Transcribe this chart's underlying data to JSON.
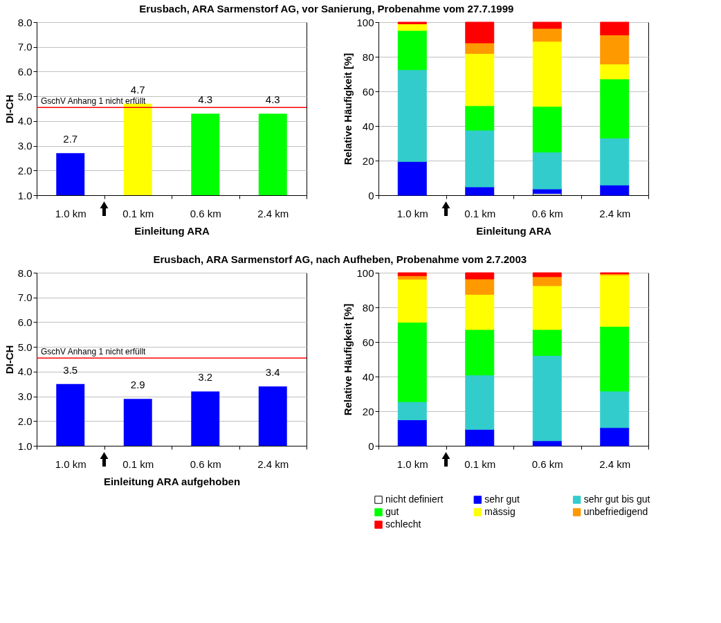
{
  "chart_data": [
    {
      "type": "bar",
      "title": "Erusbach, ARA Sarmenstorf AG, vor Sanierung, Probenahme vom  27.7.1999",
      "xlabel": "Einleitung ARA",
      "ylabel": "DI-CH",
      "categories": [
        "1.0 km",
        "0.1 km",
        "0.6 km",
        "2.4 km"
      ],
      "values": [
        2.7,
        4.7,
        4.3,
        4.3
      ],
      "colors": [
        "#0000ff",
        "#ffff00",
        "#00ff00",
        "#00ff00"
      ],
      "ylim": [
        1,
        8
      ],
      "yticks": [
        {
          "value": 1,
          "label": "1.0"
        },
        {
          "value": 2,
          "label": "2.0"
        },
        {
          "value": 3,
          "label": "3.0"
        },
        {
          "value": 4,
          "label": "4.0"
        },
        {
          "value": 5,
          "label": "5.0"
        },
        {
          "value": 6,
          "label": "6.0"
        },
        {
          "value": 7,
          "label": "7.0"
        },
        {
          "value": 8,
          "label": "8.0"
        }
      ],
      "grid": "y",
      "data_labels": true,
      "legend": false,
      "ref_lines": [
        {
          "axis": "y",
          "value": 4.55,
          "label": "GschV Anhang 1 nicht erfüllt",
          "color": "#ff0000"
        }
      ]
    },
    {
      "type": "bar",
      "stacked": true,
      "xlabel": "Einleitung ARA",
      "ylabel": "Relative Häufigkeit [%]",
      "categories": [
        "1.0 km",
        "0.1 km",
        "0.6 km",
        "2.4 km"
      ],
      "ylim": [
        0,
        100
      ],
      "yticks": [
        0,
        20,
        40,
        60,
        80,
        100
      ],
      "grid": "y",
      "legend": false,
      "series": [
        {
          "color": "#ffffff",
          "values": [
            0,
            0,
            1.0,
            0
          ]
        },
        {
          "color": "#0000ff",
          "values": [
            19.5,
            4.8,
            2.6,
            5.9
          ]
        },
        {
          "color": "#33cccc",
          "values": [
            53.0,
            32.8,
            21.3,
            27.1
          ]
        },
        {
          "color": "#00ff00",
          "values": [
            22.7,
            14.1,
            26.4,
            34.2
          ]
        },
        {
          "color": "#ffff00",
          "values": [
            3.8,
            30.2,
            37.6,
            8.6
          ]
        },
        {
          "color": "#ff9900",
          "values": [
            0,
            6.1,
            7.5,
            16.8
          ]
        },
        {
          "color": "#ff0000",
          "values": [
            1.0,
            12.0,
            3.6,
            7.4
          ]
        }
      ]
    },
    {
      "type": "bar",
      "title": "Erusbach, ARA Sarmenstorf AG, nach Aufheben, Probenahme vom 2.7.2003",
      "xlabel": "Einleitung ARA aufgehoben",
      "ylabel": "DI-CH",
      "categories": [
        "1.0 km",
        "0.1 km",
        "0.6 km",
        "2.4 km"
      ],
      "values": [
        3.5,
        2.9,
        3.2,
        3.4
      ],
      "colors": [
        "#0000ff",
        "#0000ff",
        "#0000ff",
        "#0000ff"
      ],
      "ylim": [
        1,
        8
      ],
      "yticks": [
        {
          "value": 1,
          "label": "1.0"
        },
        {
          "value": 2,
          "label": "2.0"
        },
        {
          "value": 3,
          "label": "3.0"
        },
        {
          "value": 4,
          "label": "4.0"
        },
        {
          "value": 5,
          "label": "5.0"
        },
        {
          "value": 6,
          "label": "6.0"
        },
        {
          "value": 7,
          "label": "7.0"
        },
        {
          "value": 8,
          "label": "8.0"
        }
      ],
      "grid": "y",
      "data_labels": true,
      "legend": false,
      "ref_lines": [
        {
          "axis": "y",
          "value": 4.55,
          "label": "GschV Anhang 1 nicht erfüllt",
          "color": "#ff0000"
        }
      ]
    },
    {
      "type": "bar",
      "stacked": true,
      "ylabel": "Relative Häufigkeit [%]",
      "categories": [
        "1.0 km",
        "0.1 km",
        "0.6 km",
        "2.4 km"
      ],
      "ylim": [
        0,
        100
      ],
      "yticks": [
        0,
        20,
        40,
        60,
        80,
        100
      ],
      "grid": "y",
      "legend": "bottom",
      "series": [
        {
          "name": "nicht definiert",
          "color": "#ffffff",
          "values": [
            0,
            0,
            0,
            0
          ]
        },
        {
          "name": "sehr gut",
          "color": "#0000ff",
          "values": [
            15.0,
            9.5,
            2.9,
            10.5
          ]
        },
        {
          "name": "sehr gut bis gut",
          "color": "#33cccc",
          "values": [
            10.5,
            31.4,
            49.3,
            21.1
          ]
        },
        {
          "name": "gut",
          "color": "#00ff00",
          "values": [
            45.9,
            26.3,
            15.0,
            37.4
          ]
        },
        {
          "name": "mässig",
          "color": "#ffff00",
          "values": [
            24.9,
            20.3,
            25.3,
            29.7
          ]
        },
        {
          "name": "unbefriedigend",
          "color": "#ff9900",
          "values": [
            2.0,
            8.9,
            5.2,
            0.7
          ]
        },
        {
          "name": "schlecht",
          "color": "#ff0000",
          "values": [
            1.7,
            3.6,
            2.3,
            0.6
          ]
        }
      ]
    }
  ]
}
